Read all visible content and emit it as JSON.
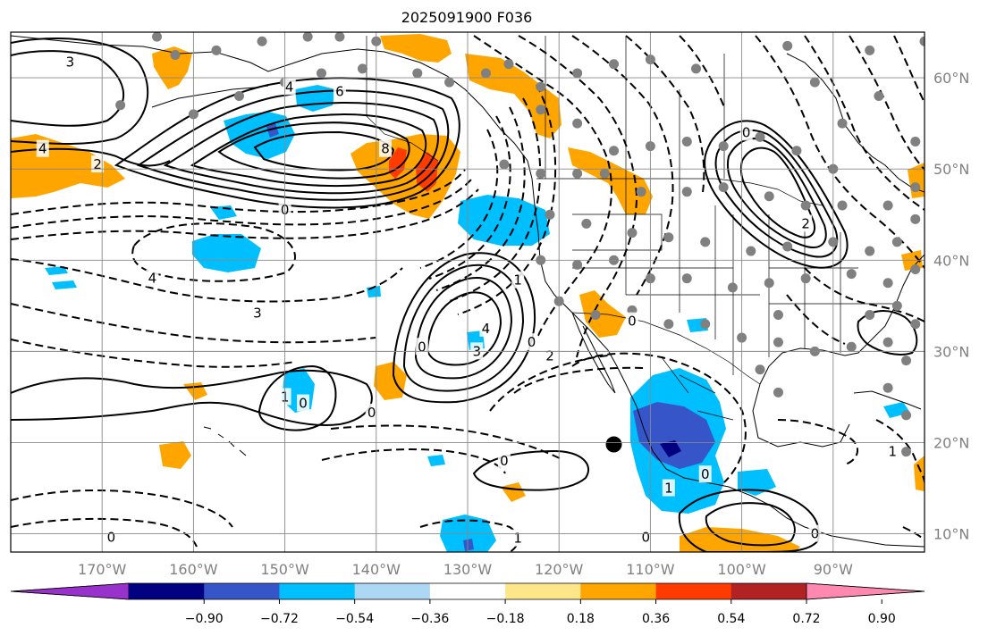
{
  "map": {
    "title": "2025091900 F036",
    "projection": "plate-carree",
    "lon_range": [
      -180,
      -80
    ],
    "lat_range": [
      8,
      65
    ],
    "longitude_ticks": [
      {
        "value": -170,
        "label": "170°W"
      },
      {
        "value": -160,
        "label": "160°W"
      },
      {
        "value": -150,
        "label": "150°W"
      },
      {
        "value": -140,
        "label": "140°W"
      },
      {
        "value": -130,
        "label": "130°W"
      },
      {
        "value": -120,
        "label": "120°W"
      },
      {
        "value": -110,
        "label": "110°W"
      },
      {
        "value": -100,
        "label": "100°W"
      },
      {
        "value": -90,
        "label": "90°W"
      }
    ],
    "latitude_ticks": [
      {
        "value": 60,
        "label": "60°N"
      },
      {
        "value": 50,
        "label": "50°N"
      },
      {
        "value": 40,
        "label": "40°N"
      },
      {
        "value": 30,
        "label": "30°N"
      },
      {
        "value": 20,
        "label": "20°N"
      },
      {
        "value": 10,
        "label": "10°N"
      }
    ],
    "grid": true,
    "contour_labels": [
      {
        "text": "3",
        "lon": -173.5,
        "lat": 61.7
      },
      {
        "text": "4",
        "lon": -176.5,
        "lat": 52.2
      },
      {
        "text": "2",
        "lon": -170.5,
        "lat": 50.5
      },
      {
        "text": "4",
        "lon": -149.5,
        "lat": 59.0
      },
      {
        "text": "6",
        "lon": -144.0,
        "lat": 58.5
      },
      {
        "text": "8",
        "lon": -139.0,
        "lat": 52.2
      },
      {
        "text": "4",
        "lon": -164.5,
        "lat": 38.0
      },
      {
        "text": "3",
        "lon": -153.0,
        "lat": 34.2
      },
      {
        "text": "0",
        "lon": -150.0,
        "lat": 45.5
      },
      {
        "text": "0",
        "lon": -135.0,
        "lat": 30.5
      },
      {
        "text": "4",
        "lon": -128.0,
        "lat": 32.5
      },
      {
        "text": "3",
        "lon": -129.0,
        "lat": 30.0
      },
      {
        "text": "2",
        "lon": -121.0,
        "lat": 29.5
      },
      {
        "text": "0",
        "lon": -123.0,
        "lat": 31.0
      },
      {
        "text": "2",
        "lon": -93.0,
        "lat": 44.0
      },
      {
        "text": "0",
        "lon": -112.0,
        "lat": 33.3
      },
      {
        "text": "1",
        "lon": -150.0,
        "lat": 25.0
      },
      {
        "text": "0",
        "lon": -140.5,
        "lat": 23.3
      },
      {
        "text": "0",
        "lon": -126.0,
        "lat": 18.0
      },
      {
        "text": "0",
        "lon": -148.0,
        "lat": 24.3
      },
      {
        "text": "1",
        "lon": -124.5,
        "lat": 9.5
      },
      {
        "text": "1",
        "lon": -108.0,
        "lat": 15.0
      },
      {
        "text": "0",
        "lon": -104.0,
        "lat": 16.5
      },
      {
        "text": "0",
        "lon": -110.5,
        "lat": 9.6
      },
      {
        "text": "0",
        "lon": -92.0,
        "lat": 10.0
      },
      {
        "text": "1",
        "lon": -83.5,
        "lat": 19.0
      },
      {
        "text": "0",
        "lon": -169.0,
        "lat": 9.6
      },
      {
        "text": "1",
        "lon": -124.5,
        "lat": 37.8
      },
      {
        "text": "0",
        "lon": -99.5,
        "lat": 54.0
      }
    ],
    "marker": {
      "lon": -114.0,
      "lat": 19.8,
      "shape": "filled-circle",
      "color": "#000000"
    },
    "station_dot_color": "#808080",
    "station_dots": [
      [
        -164,
        64.5
      ],
      [
        -162,
        62.5
      ],
      [
        -157.5,
        63
      ],
      [
        -152.5,
        64
      ],
      [
        -147.5,
        64.5
      ],
      [
        -144,
        64.5
      ],
      [
        -140,
        64
      ],
      [
        -168,
        57
      ],
      [
        -160,
        56
      ],
      [
        -155,
        58
      ],
      [
        -150,
        59.5
      ],
      [
        -146,
        60.5
      ],
      [
        -141.5,
        61
      ],
      [
        -135.5,
        60.5
      ],
      [
        -132,
        59.5
      ],
      [
        -128,
        60.5
      ],
      [
        -125.5,
        61.5
      ],
      [
        -122,
        59
      ],
      [
        -118,
        60.5
      ],
      [
        -114,
        61.5
      ],
      [
        -110,
        62
      ],
      [
        -105,
        61
      ],
      [
        -122,
        56.5
      ],
      [
        -118,
        55
      ],
      [
        -114,
        52
      ],
      [
        -110,
        52.5
      ],
      [
        -106,
        53
      ],
      [
        -102,
        52.5
      ],
      [
        -98,
        53.5
      ],
      [
        -94,
        52
      ],
      [
        -126,
        50.5
      ],
      [
        -122,
        49.5
      ],
      [
        -118,
        49.5
      ],
      [
        -115,
        49.5
      ],
      [
        -111,
        47.5
      ],
      [
        -106,
        47.5
      ],
      [
        -102,
        48
      ],
      [
        -97,
        47
      ],
      [
        -93,
        46
      ],
      [
        -89,
        46
      ],
      [
        -84,
        46
      ],
      [
        -81,
        44.5
      ],
      [
        -121,
        45
      ],
      [
        -117,
        44
      ],
      [
        -112,
        43
      ],
      [
        -108,
        42.5
      ],
      [
        -104,
        42
      ],
      [
        -99,
        41
      ],
      [
        -95,
        41.5
      ],
      [
        -90,
        42
      ],
      [
        -86,
        41
      ],
      [
        -122,
        40
      ],
      [
        -118,
        39.5
      ],
      [
        -114,
        40
      ],
      [
        -110,
        38
      ],
      [
        -106,
        38
      ],
      [
        -101,
        37
      ],
      [
        -97,
        37.5
      ],
      [
        -93,
        38
      ],
      [
        -88,
        38.5
      ],
      [
        -84,
        37.5
      ],
      [
        -81,
        39
      ],
      [
        -120,
        35.5
      ],
      [
        -116,
        34
      ],
      [
        -112,
        34.5
      ],
      [
        -108,
        33
      ],
      [
        -104,
        33
      ],
      [
        -100,
        31.5
      ],
      [
        -96,
        31
      ],
      [
        -92,
        30
      ],
      [
        -88,
        30.5
      ],
      [
        -84,
        31
      ],
      [
        -81,
        33
      ],
      [
        -98,
        28
      ],
      [
        -96,
        25.5
      ],
      [
        -82,
        29
      ],
      [
        -84,
        26
      ],
      [
        -90,
        50
      ],
      [
        -85,
        58
      ],
      [
        -89,
        55
      ],
      [
        -92,
        59.5
      ],
      [
        -86,
        63
      ],
      [
        -80,
        64
      ],
      [
        -95,
        63.5
      ],
      [
        -81,
        53
      ],
      [
        -81,
        48
      ],
      [
        -83,
        42
      ],
      [
        -96,
        34
      ],
      [
        -83,
        35
      ],
      [
        -86,
        34
      ],
      [
        -82,
        23
      ],
      [
        -82,
        19
      ]
    ],
    "shading_legend": {
      "type": "colorbar",
      "extend": "both",
      "ticks": [
        "−0.90",
        "−0.72",
        "−0.54",
        "−0.36",
        "−0.18",
        "0.18",
        "0.36",
        "0.54",
        "0.72",
        "0.90"
      ],
      "colors": [
        "#9932cc",
        "#000080",
        "#3655c8",
        "#00bfff",
        "#add8f5",
        "#ffffff",
        "#fde68a",
        "#ffa500",
        "#ff3b00",
        "#b22222",
        "#ff88b0"
      ]
    }
  }
}
